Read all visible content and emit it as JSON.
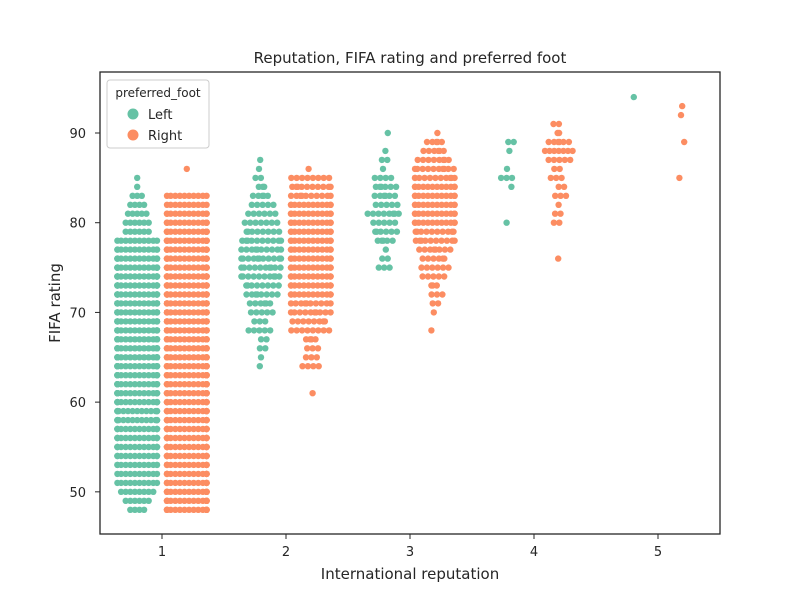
{
  "chart_data": {
    "type": "scatter",
    "title": "Reputation, FIFA rating and preferred foot",
    "xlabel": "International reputation",
    "ylabel": "FIFA rating",
    "x_categories": [
      1,
      2,
      3,
      4,
      5
    ],
    "y_ticks": [
      50,
      60,
      70,
      80,
      90
    ],
    "ylim": [
      45.3,
      96.8
    ],
    "xlim": [
      0.5,
      5.5
    ],
    "grid": false,
    "legend": {
      "title": "preferred_foot",
      "placement": "top-left"
    },
    "series": [
      {
        "name": "Left",
        "color": "#66c2a5",
        "groups": [
          {
            "x": 1,
            "ratings": [
              {
                "y": 48,
                "n": 4
              },
              {
                "y": 49,
                "n": 6
              },
              {
                "y": 50,
                "n": 8
              },
              {
                "y": 51,
                "n": 10
              },
              {
                "y": 52,
                "n": 10
              },
              {
                "y": 53,
                "n": 12
              },
              {
                "y": 54,
                "n": 12
              },
              {
                "y": 55,
                "n": 14
              },
              {
                "y": 56,
                "n": 14
              },
              {
                "y": 57,
                "n": 14
              },
              {
                "y": 58,
                "n": 15
              },
              {
                "y": 59,
                "n": 15
              },
              {
                "y": 60,
                "n": 16
              },
              {
                "y": 61,
                "n": 16
              },
              {
                "y": 62,
                "n": 16
              },
              {
                "y": 63,
                "n": 16
              },
              {
                "y": 64,
                "n": 16
              },
              {
                "y": 65,
                "n": 16
              },
              {
                "y": 66,
                "n": 16
              },
              {
                "y": 67,
                "n": 16
              },
              {
                "y": 68,
                "n": 16
              },
              {
                "y": 69,
                "n": 16
              },
              {
                "y": 70,
                "n": 16
              },
              {
                "y": 71,
                "n": 16
              },
              {
                "y": 72,
                "n": 16
              },
              {
                "y": 73,
                "n": 16
              },
              {
                "y": 74,
                "n": 16
              },
              {
                "y": 75,
                "n": 16
              },
              {
                "y": 76,
                "n": 14
              },
              {
                "y": 77,
                "n": 12
              },
              {
                "y": 78,
                "n": 10
              },
              {
                "y": 79,
                "n": 6
              },
              {
                "y": 80,
                "n": 6
              },
              {
                "y": 81,
                "n": 5
              },
              {
                "y": 82,
                "n": 4
              },
              {
                "y": 83,
                "n": 3
              },
              {
                "y": 84,
                "n": 1
              },
              {
                "y": 85,
                "n": 1
              }
            ]
          },
          {
            "x": 2,
            "ratings": [
              {
                "y": 64,
                "n": 1
              },
              {
                "y": 65,
                "n": 1
              },
              {
                "y": 66,
                "n": 2
              },
              {
                "y": 67,
                "n": 2
              },
              {
                "y": 68,
                "n": 5
              },
              {
                "y": 69,
                "n": 3
              },
              {
                "y": 70,
                "n": 5
              },
              {
                "y": 71,
                "n": 6
              },
              {
                "y": 72,
                "n": 8
              },
              {
                "y": 73,
                "n": 8
              },
              {
                "y": 74,
                "n": 10
              },
              {
                "y": 75,
                "n": 10
              },
              {
                "y": 76,
                "n": 11
              },
              {
                "y": 77,
                "n": 10
              },
              {
                "y": 78,
                "n": 10
              },
              {
                "y": 79,
                "n": 8
              },
              {
                "y": 80,
                "n": 7
              },
              {
                "y": 81,
                "n": 6
              },
              {
                "y": 82,
                "n": 5
              },
              {
                "y": 83,
                "n": 5
              },
              {
                "y": 84,
                "n": 3
              },
              {
                "y": 85,
                "n": 2
              },
              {
                "y": 86,
                "n": 1
              },
              {
                "y": 87,
                "n": 1
              }
            ]
          },
          {
            "x": 3,
            "ratings": [
              {
                "y": 75,
                "n": 3
              },
              {
                "y": 76,
                "n": 2
              },
              {
                "y": 77,
                "n": 1
              },
              {
                "y": 78,
                "n": 5
              },
              {
                "y": 79,
                "n": 6
              },
              {
                "y": 80,
                "n": 5
              },
              {
                "y": 81,
                "n": 8
              },
              {
                "y": 82,
                "n": 5
              },
              {
                "y": 83,
                "n": 6
              },
              {
                "y": 84,
                "n": 6
              },
              {
                "y": 85,
                "n": 4
              },
              {
                "y": 86,
                "n": 1
              },
              {
                "y": 87,
                "n": 2
              },
              {
                "y": 88,
                "n": 1
              },
              {
                "y": 90,
                "n": 1
              }
            ]
          },
          {
            "x": 4,
            "ratings": [
              {
                "y": 80,
                "n": 1
              },
              {
                "y": 84,
                "n": 1
              },
              {
                "y": 85,
                "n": 3
              },
              {
                "y": 86,
                "n": 1
              },
              {
                "y": 88,
                "n": 1
              },
              {
                "y": 89,
                "n": 2
              }
            ]
          },
          {
            "x": 5,
            "ratings": [
              {
                "y": 94,
                "n": 1
              }
            ]
          }
        ]
      },
      {
        "name": "Right",
        "color": "#fc8d62",
        "groups": [
          {
            "x": 1,
            "ratings": [
              {
                "y": 48,
                "n": 16
              },
              {
                "y": 49,
                "n": 16
              },
              {
                "y": 50,
                "n": 16
              },
              {
                "y": 51,
                "n": 16
              },
              {
                "y": 52,
                "n": 16
              },
              {
                "y": 53,
                "n": 16
              },
              {
                "y": 54,
                "n": 16
              },
              {
                "y": 55,
                "n": 16
              },
              {
                "y": 56,
                "n": 16
              },
              {
                "y": 57,
                "n": 16
              },
              {
                "y": 58,
                "n": 16
              },
              {
                "y": 59,
                "n": 16
              },
              {
                "y": 60,
                "n": 16
              },
              {
                "y": 61,
                "n": 16
              },
              {
                "y": 62,
                "n": 16
              },
              {
                "y": 63,
                "n": 16
              },
              {
                "y": 64,
                "n": 16
              },
              {
                "y": 65,
                "n": 16
              },
              {
                "y": 66,
                "n": 16
              },
              {
                "y": 67,
                "n": 16
              },
              {
                "y": 68,
                "n": 16
              },
              {
                "y": 69,
                "n": 16
              },
              {
                "y": 70,
                "n": 16
              },
              {
                "y": 71,
                "n": 16
              },
              {
                "y": 72,
                "n": 16
              },
              {
                "y": 73,
                "n": 16
              },
              {
                "y": 74,
                "n": 16
              },
              {
                "y": 75,
                "n": 16
              },
              {
                "y": 76,
                "n": 16
              },
              {
                "y": 77,
                "n": 16
              },
              {
                "y": 78,
                "n": 16
              },
              {
                "y": 79,
                "n": 16
              },
              {
                "y": 80,
                "n": 14
              },
              {
                "y": 81,
                "n": 12
              },
              {
                "y": 82,
                "n": 10
              },
              {
                "y": 83,
                "n": 10
              },
              {
                "y": 86,
                "n": 1
              }
            ]
          },
          {
            "x": 2,
            "ratings": [
              {
                "y": 61,
                "n": 1
              },
              {
                "y": 64,
                "n": 4
              },
              {
                "y": 65,
                "n": 3
              },
              {
                "y": 66,
                "n": 3
              },
              {
                "y": 67,
                "n": 4
              },
              {
                "y": 68,
                "n": 8
              },
              {
                "y": 69,
                "n": 8
              },
              {
                "y": 70,
                "n": 10
              },
              {
                "y": 71,
                "n": 10
              },
              {
                "y": 72,
                "n": 12
              },
              {
                "y": 73,
                "n": 12
              },
              {
                "y": 74,
                "n": 12
              },
              {
                "y": 75,
                "n": 12
              },
              {
                "y": 76,
                "n": 12
              },
              {
                "y": 77,
                "n": 12
              },
              {
                "y": 78,
                "n": 12
              },
              {
                "y": 79,
                "n": 12
              },
              {
                "y": 80,
                "n": 12
              },
              {
                "y": 81,
                "n": 12
              },
              {
                "y": 82,
                "n": 12
              },
              {
                "y": 83,
                "n": 10
              },
              {
                "y": 84,
                "n": 10
              },
              {
                "y": 85,
                "n": 8
              },
              {
                "y": 86,
                "n": 1
              }
            ]
          },
          {
            "x": 3,
            "ratings": [
              {
                "y": 68,
                "n": 1
              },
              {
                "y": 70,
                "n": 1
              },
              {
                "y": 71,
                "n": 2
              },
              {
                "y": 72,
                "n": 3
              },
              {
                "y": 73,
                "n": 3
              },
              {
                "y": 74,
                "n": 5
              },
              {
                "y": 75,
                "n": 6
              },
              {
                "y": 76,
                "n": 6
              },
              {
                "y": 77,
                "n": 8
              },
              {
                "y": 78,
                "n": 10
              },
              {
                "y": 79,
                "n": 10
              },
              {
                "y": 80,
                "n": 12
              },
              {
                "y": 81,
                "n": 12
              },
              {
                "y": 82,
                "n": 12
              },
              {
                "y": 83,
                "n": 12
              },
              {
                "y": 84,
                "n": 12
              },
              {
                "y": 85,
                "n": 11
              },
              {
                "y": 86,
                "n": 10
              },
              {
                "y": 87,
                "n": 8
              },
              {
                "y": 88,
                "n": 6
              },
              {
                "y": 89,
                "n": 5
              },
              {
                "y": 90,
                "n": 1
              }
            ]
          },
          {
            "x": 4,
            "ratings": [
              {
                "y": 76,
                "n": 1
              },
              {
                "y": 80,
                "n": 2
              },
              {
                "y": 81,
                "n": 2
              },
              {
                "y": 82,
                "n": 1
              },
              {
                "y": 83,
                "n": 3
              },
              {
                "y": 84,
                "n": 2
              },
              {
                "y": 85,
                "n": 3
              },
              {
                "y": 86,
                "n": 2
              },
              {
                "y": 87,
                "n": 5
              },
              {
                "y": 88,
                "n": 7
              },
              {
                "y": 89,
                "n": 6
              },
              {
                "y": 90,
                "n": 2
              },
              {
                "y": 91,
                "n": 2
              }
            ]
          },
          {
            "x": 5,
            "ratings": [
              {
                "y": 85,
                "n": 1
              },
              {
                "y": 89,
                "n": 1
              },
              {
                "y": 92,
                "n": 1
              },
              {
                "y": 93,
                "n": 1
              }
            ]
          }
        ]
      }
    ]
  }
}
